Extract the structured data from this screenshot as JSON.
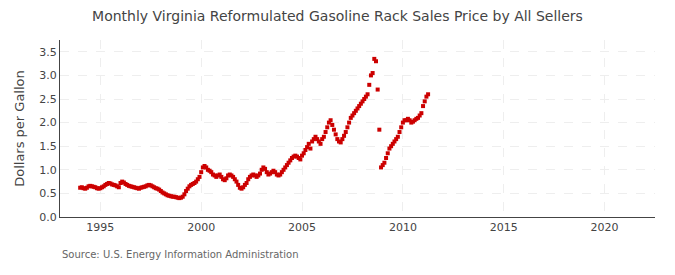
{
  "chart_data": {
    "type": "scatter",
    "title": "Monthly Virginia Reformulated Gasoline Rack Sales Price by All Sellers",
    "ylabel": "Dollars per Gallon",
    "annotations": [
      "Source: U.S. Energy Information Administration"
    ],
    "color": "#cc0000",
    "marker": "square",
    "grid": true,
    "xlim": [
      1993.0,
      2022.5
    ],
    "ylim": [
      0.0,
      3.75
    ],
    "xticks": [
      1995,
      2000,
      2005,
      2010,
      2015,
      2020
    ],
    "yticks": [
      {
        "value": 0.0,
        "label": "0.0"
      },
      0.5,
      {
        "value": 1.0,
        "label": "1.0"
      },
      1.5,
      {
        "value": 2.0,
        "label": "2.0"
      },
      2.5,
      {
        "value": 3.0,
        "label": "3.0"
      },
      3.5
    ],
    "x": [
      1994.0,
      1994.083,
      1994.167,
      1994.25,
      1994.333,
      1994.417,
      1994.5,
      1994.583,
      1994.667,
      1994.75,
      1994.833,
      1994.917,
      1995.0,
      1995.083,
      1995.167,
      1995.25,
      1995.333,
      1995.417,
      1995.5,
      1995.583,
      1995.667,
      1995.75,
      1995.833,
      1995.917,
      1996.0,
      1996.083,
      1996.167,
      1996.25,
      1996.333,
      1996.417,
      1996.5,
      1996.583,
      1996.667,
      1996.75,
      1996.833,
      1996.917,
      1997.0,
      1997.083,
      1997.167,
      1997.25,
      1997.333,
      1997.417,
      1997.5,
      1997.583,
      1997.667,
      1997.75,
      1997.833,
      1997.917,
      1998.0,
      1998.083,
      1998.167,
      1998.25,
      1998.333,
      1998.417,
      1998.5,
      1998.583,
      1998.667,
      1998.75,
      1998.833,
      1998.917,
      1999.0,
      1999.083,
      1999.167,
      1999.25,
      1999.333,
      1999.417,
      1999.5,
      1999.583,
      1999.667,
      1999.75,
      1999.833,
      1999.917,
      2000.0,
      2000.083,
      2000.167,
      2000.25,
      2000.333,
      2000.417,
      2000.5,
      2000.583,
      2000.667,
      2000.75,
      2000.833,
      2000.917,
      2001.0,
      2001.083,
      2001.167,
      2001.25,
      2001.333,
      2001.417,
      2001.5,
      2001.583,
      2001.667,
      2001.75,
      2001.833,
      2001.917,
      2002.0,
      2002.083,
      2002.167,
      2002.25,
      2002.333,
      2002.417,
      2002.5,
      2002.583,
      2002.667,
      2002.75,
      2002.833,
      2002.917,
      2003.0,
      2003.083,
      2003.167,
      2003.25,
      2003.333,
      2003.417,
      2003.5,
      2003.583,
      2003.667,
      2003.75,
      2003.833,
      2003.917,
      2004.0,
      2004.083,
      2004.167,
      2004.25,
      2004.333,
      2004.417,
      2004.5,
      2004.583,
      2004.667,
      2004.75,
      2004.833,
      2004.917,
      2005.0,
      2005.083,
      2005.167,
      2005.25,
      2005.333,
      2005.417,
      2005.5,
      2005.583,
      2005.667,
      2005.75,
      2005.833,
      2005.917,
      2006.0,
      2006.083,
      2006.167,
      2006.25,
      2006.333,
      2006.417,
      2006.5,
      2006.583,
      2006.667,
      2006.75,
      2006.833,
      2006.917,
      2007.0,
      2007.083,
      2007.167,
      2007.25,
      2007.333,
      2007.417,
      2007.5,
      2007.583,
      2007.667,
      2007.75,
      2007.833,
      2007.917,
      2008.0,
      2008.083,
      2008.167,
      2008.25,
      2008.333,
      2008.417,
      2008.5,
      2008.583,
      2008.667,
      2008.75,
      2008.833,
      2008.917,
      2009.0,
      2009.083,
      2009.167,
      2009.25,
      2009.333,
      2009.417,
      2009.5,
      2009.583,
      2009.667,
      2009.75,
      2009.833,
      2009.917,
      2010.0,
      2010.083,
      2010.167,
      2010.25,
      2010.333,
      2010.417,
      2010.5,
      2010.583,
      2010.667,
      2010.75,
      2010.833,
      2010.917,
      2011.0,
      2011.083,
      2011.167,
      2011.25
    ],
    "values": [
      0.62,
      0.63,
      0.61,
      0.6,
      0.62,
      0.65,
      0.66,
      0.65,
      0.64,
      0.63,
      0.61,
      0.6,
      0.61,
      0.63,
      0.65,
      0.68,
      0.7,
      0.72,
      0.71,
      0.69,
      0.68,
      0.67,
      0.65,
      0.63,
      0.72,
      0.75,
      0.73,
      0.7,
      0.68,
      0.66,
      0.65,
      0.64,
      0.63,
      0.62,
      0.61,
      0.6,
      0.62,
      0.63,
      0.64,
      0.65,
      0.67,
      0.68,
      0.67,
      0.65,
      0.63,
      0.61,
      0.6,
      0.58,
      0.55,
      0.52,
      0.5,
      0.48,
      0.46,
      0.45,
      0.44,
      0.43,
      0.43,
      0.42,
      0.41,
      0.4,
      0.41,
      0.43,
      0.48,
      0.55,
      0.6,
      0.65,
      0.68,
      0.7,
      0.72,
      0.75,
      0.8,
      0.85,
      0.95,
      1.05,
      1.08,
      1.05,
      1.0,
      0.98,
      0.95,
      0.9,
      0.88,
      0.85,
      0.88,
      0.9,
      0.85,
      0.8,
      0.78,
      0.82,
      0.88,
      0.9,
      0.88,
      0.85,
      0.8,
      0.75,
      0.68,
      0.62,
      0.6,
      0.63,
      0.68,
      0.72,
      0.8,
      0.85,
      0.88,
      0.9,
      0.88,
      0.85,
      0.88,
      0.92,
      1.0,
      1.05,
      1.02,
      0.95,
      0.9,
      0.92,
      0.95,
      0.98,
      0.95,
      0.9,
      0.88,
      0.9,
      0.95,
      1.0,
      1.05,
      1.1,
      1.15,
      1.2,
      1.25,
      1.28,
      1.3,
      1.28,
      1.25,
      1.22,
      1.3,
      1.35,
      1.42,
      1.48,
      1.55,
      1.45,
      1.6,
      1.65,
      1.7,
      1.65,
      1.6,
      1.55,
      1.65,
      1.7,
      1.8,
      1.9,
      2.0,
      2.05,
      1.95,
      1.85,
      1.75,
      1.65,
      1.6,
      1.58,
      1.65,
      1.72,
      1.8,
      1.9,
      2.0,
      2.1,
      2.15,
      2.2,
      2.25,
      2.3,
      2.35,
      2.4,
      2.45,
      2.5,
      2.55,
      2.6,
      2.8,
      3.0,
      3.05,
      3.35,
      3.3,
      2.7,
      1.85,
      1.05,
      1.1,
      1.15,
      1.25,
      1.35,
      1.45,
      1.5,
      1.55,
      1.6,
      1.65,
      1.7,
      1.8,
      1.9,
      2.0,
      2.05,
      2.05,
      2.08,
      2.05,
      2.0,
      2.02,
      2.05,
      2.08,
      2.1,
      2.15,
      2.2,
      2.35,
      2.45,
      2.55,
      2.6
    ]
  }
}
